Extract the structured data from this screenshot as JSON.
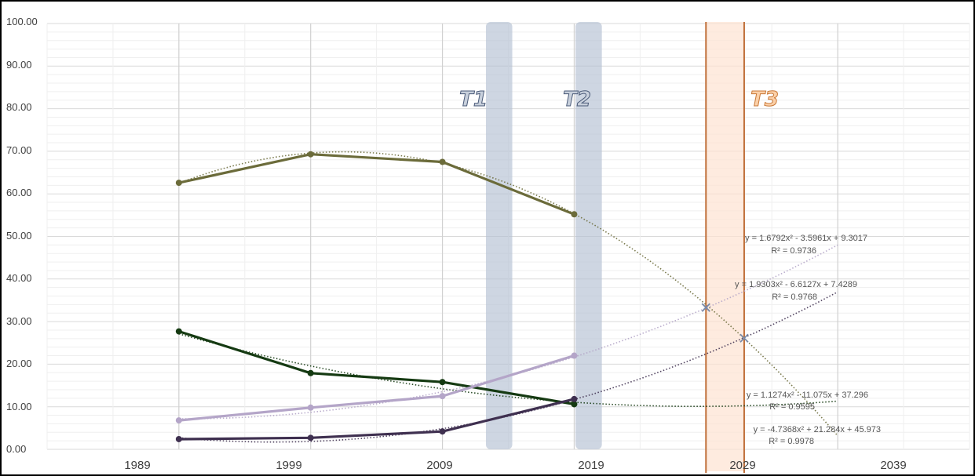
{
  "chart_data": {
    "type": "line",
    "x": [
      1989,
      1999,
      2009,
      2019
    ],
    "x_ticks": [
      "1989",
      "1999",
      "2009",
      "2019",
      "2029",
      "2039"
    ],
    "y_ticks": [
      "0.00",
      "10.00",
      "20.00",
      "30.00",
      "40.00",
      "50.00",
      "60.00",
      "70.00",
      "80.00",
      "90.00",
      "100.00"
    ],
    "xlim": [
      1979,
      2049
    ],
    "ylim": [
      0,
      100
    ],
    "grid": true,
    "legend": "none",
    "series": [
      {
        "color": "#6b6b3a",
        "values": [
          62.6,
          69.3,
          67.5,
          55.2
        ],
        "trend_end": 3.2
      },
      {
        "color": "#153a12",
        "values": [
          27.7,
          17.9,
          15.8,
          10.6
        ],
        "trend_end": 11.3
      },
      {
        "color": "#b4a5c8",
        "values": [
          6.8,
          9.8,
          12.5,
          22.0
        ],
        "trend_end": 48.0
      },
      {
        "color": "#3f3050",
        "values": [
          2.4,
          2.7,
          4.2,
          11.8
        ],
        "trend_end": 37.0
      }
    ],
    "periods": [
      {
        "label": "T1",
        "from": 2012.3,
        "to": 2014.3,
        "style": "blue"
      },
      {
        "label": "T2",
        "from": 2019.1,
        "to": 2021.1,
        "style": "blue"
      },
      {
        "label": "T3",
        "from": 2029.0,
        "to": 2031.9,
        "style": "orange"
      }
    ],
    "intersections": [
      {
        "x": 2029.0,
        "y": 33.3
      },
      {
        "x": 2031.9,
        "y": 26.1
      }
    ],
    "equations": [
      {
        "eq": "y = 1.6792x² - 3.5961x + 9.3017",
        "r2": "R² = 0.9736"
      },
      {
        "eq": "y = 1.9303x² - 6.6127x + 7.4289",
        "r2": "R² = 0.9768"
      },
      {
        "eq": "y = 1.1274x² - 11.075x + 37.296",
        "r2": "R² = 0.9595"
      },
      {
        "eq": "y = -4.7368x² + 21.284x + 45.973",
        "r2": "R² = 0.9978"
      }
    ]
  }
}
